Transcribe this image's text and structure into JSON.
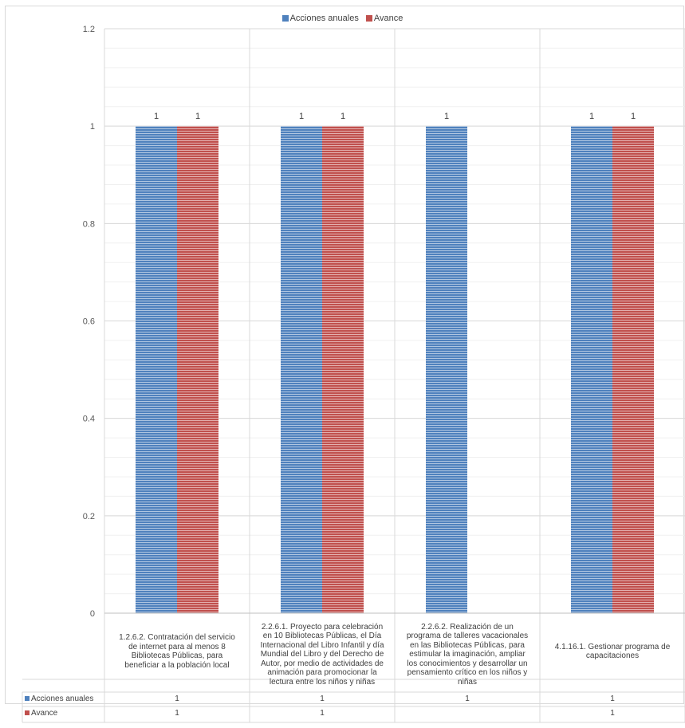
{
  "chart_data": {
    "type": "bar",
    "categories": [
      "1.2.6.2. Contratación del servicio de internet para al menos 8 Bibliotecas Públicas, para beneficiar a la población local",
      "2.2.6.1. Proyecto para celebración en 10 Bibliotecas Públicas, el Día Internacional del Libro Infantil y día Mundial del Libro y del Derecho de Autor, por medio de actividades de animación para promocionar la lectura entre los niños y niñas",
      "2.2.6.2. Realización de un programa de talleres vacacionales en las Bibliotecas Públicas, para estimular la imaginación, ampliar los conocimientos y desarrollar un pensamiento crítico en los niños y niñas",
      "4.1.16.1. Gestionar programa de capacitaciones"
    ],
    "category_lines": [
      [
        "1.2.6.2. Contratación del servicio",
        "de internet para al menos 8",
        "Bibliotecas Públicas, para",
        "beneficiar a la población local"
      ],
      [
        "2.2.6.1. Proyecto para celebración",
        "en 10 Bibliotecas Públicas, el Día",
        "Internacional del Libro Infantil y día",
        "Mundial del Libro y del Derecho de",
        "Autor, por medio de actividades de",
        "animación para promocionar la",
        "lectura entre los niños y niñas"
      ],
      [
        "2.2.6.2. Realización de un",
        "programa de talleres vacacionales",
        "en las Bibliotecas Públicas, para",
        "estimular la imaginación, ampliar",
        "los conocimientos y desarrollar un",
        "pensamiento crítico en los niños y",
        "niñas"
      ],
      [
        "4.1.16.1. Gestionar programa de",
        "capacitaciones"
      ]
    ],
    "series": [
      {
        "name": "Acciones anuales",
        "color": "#4f81bd",
        "values": [
          1,
          1,
          1,
          1
        ]
      },
      {
        "name": "Avance",
        "color": "#c0504d",
        "values": [
          1,
          1,
          null,
          1
        ]
      }
    ],
    "ylim": [
      0,
      1.2
    ],
    "yticks": [
      "0",
      "0.2",
      "0.4",
      "0.6",
      "0.8",
      "1",
      "1.2"
    ],
    "ytick_values": [
      0,
      0.2,
      0.4,
      0.6,
      0.8,
      1,
      1.2
    ],
    "data_labels": [
      [
        "1",
        "1",
        "1",
        "1"
      ],
      [
        "1",
        "1",
        "",
        "1"
      ]
    ],
    "table": {
      "rows": [
        {
          "label": "Acciones anuales",
          "cells": [
            "1",
            "1",
            "1",
            "1"
          ]
        },
        {
          "label": "Avance",
          "cells": [
            "1",
            "1",
            "",
            "1"
          ]
        }
      ]
    },
    "legend_position": "top",
    "grid": true
  }
}
